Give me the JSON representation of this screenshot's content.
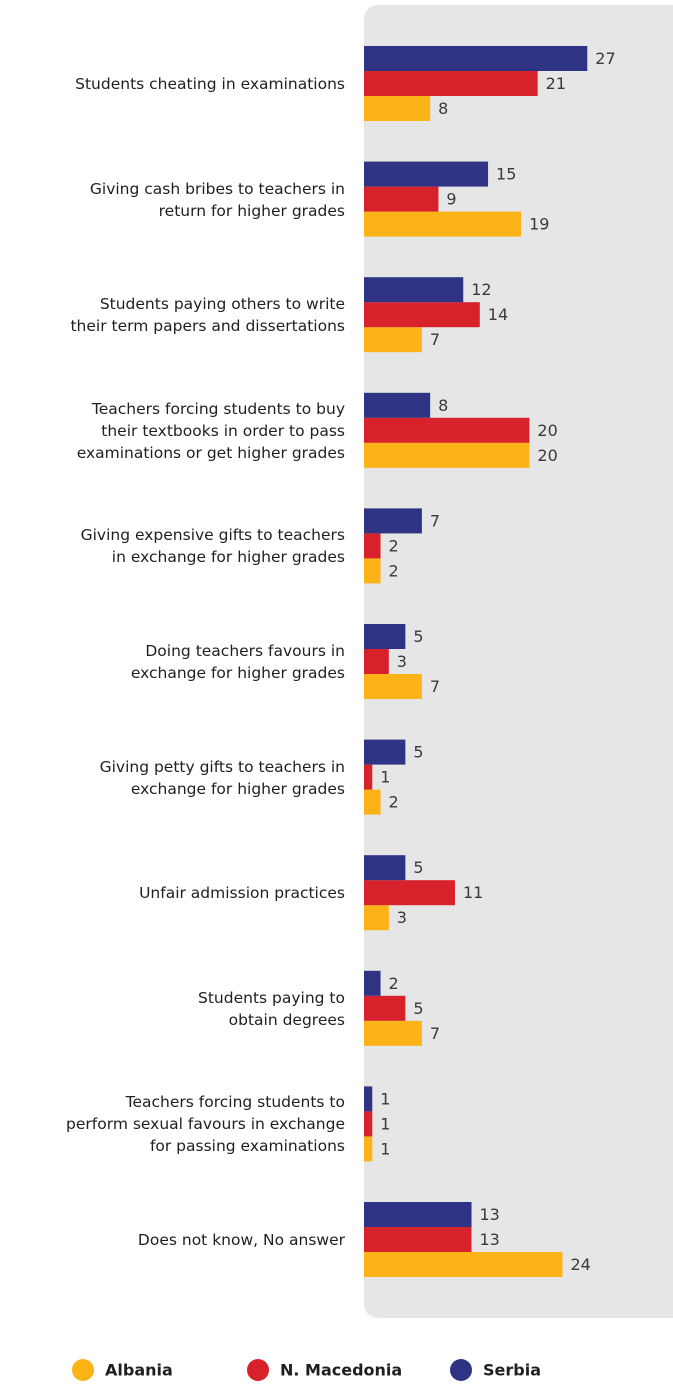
{
  "chart_data": {
    "type": "bar",
    "orientation": "horizontal",
    "categories": [
      "Students cheating in examinations",
      "Giving cash bribes to teachers in\nreturn for higher grades",
      "Students paying others to write\ntheir term papers and dissertations",
      "Teachers forcing students to buy\ntheir textbooks in order to pass\nexaminations or get higher grades",
      "Giving expensive gifts to teachers\nin exchange for higher grades",
      "Doing teachers favours in\nexchange for higher grades",
      "Giving petty gifts to teachers in\nexchange for higher grades",
      "Unfair admission practices",
      "Students paying to\nobtain degrees",
      "Teachers forcing students to\nperform sexual favours in exchange\nfor passing examinations",
      "Does not know, No answer"
    ],
    "series": [
      {
        "name": "Albania",
        "color": "#fbb317",
        "values": [
          8,
          19,
          7,
          20,
          2,
          7,
          2,
          3,
          7,
          1,
          24
        ]
      },
      {
        "name": "N. Macedonia",
        "color": "#d7222b",
        "values": [
          21,
          9,
          14,
          20,
          2,
          3,
          1,
          11,
          5,
          1,
          13
        ]
      },
      {
        "name": "Serbia",
        "color": "#2e3384",
        "values": [
          27,
          15,
          12,
          8,
          7,
          5,
          5,
          5,
          2,
          1,
          13
        ]
      }
    ],
    "legend": "bottom"
  }
}
